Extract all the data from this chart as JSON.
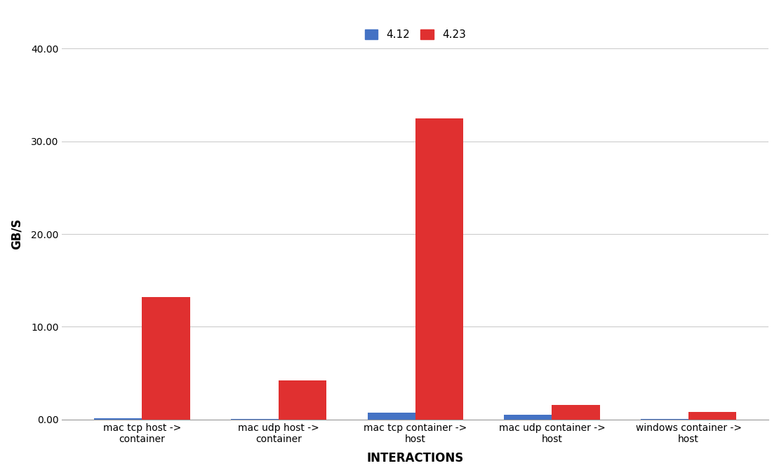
{
  "categories": [
    "mac tcp host ->\ncontainer",
    "mac udp host ->\ncontainer",
    "mac tcp container ->\nhost",
    "mac udp container ->\nhost",
    "windows container ->\nhost"
  ],
  "series": {
    "4.12": {
      "values": [
        0.12,
        0.1,
        0.75,
        0.5,
        0.1
      ],
      "color": "#4472C4"
    },
    "4.23": {
      "values": [
        13.2,
        4.2,
        32.5,
        1.6,
        0.85
      ],
      "color": "#E03030"
    }
  },
  "legend_labels": [
    "4.12",
    "4.23"
  ],
  "xlabel": "INTERACTIONS",
  "ylabel": "GB/S",
  "ylim": [
    0,
    40
  ],
  "yticks": [
    0.0,
    10.0,
    20.0,
    30.0,
    40.0
  ],
  "title": "",
  "background_color": "#ffffff",
  "plot_area_color": "#ffffff",
  "grid_color": "#cccccc",
  "bar_width": 0.35,
  "xlabel_fontsize": 12,
  "ylabel_fontsize": 12,
  "tick_fontsize": 10,
  "legend_fontsize": 11
}
